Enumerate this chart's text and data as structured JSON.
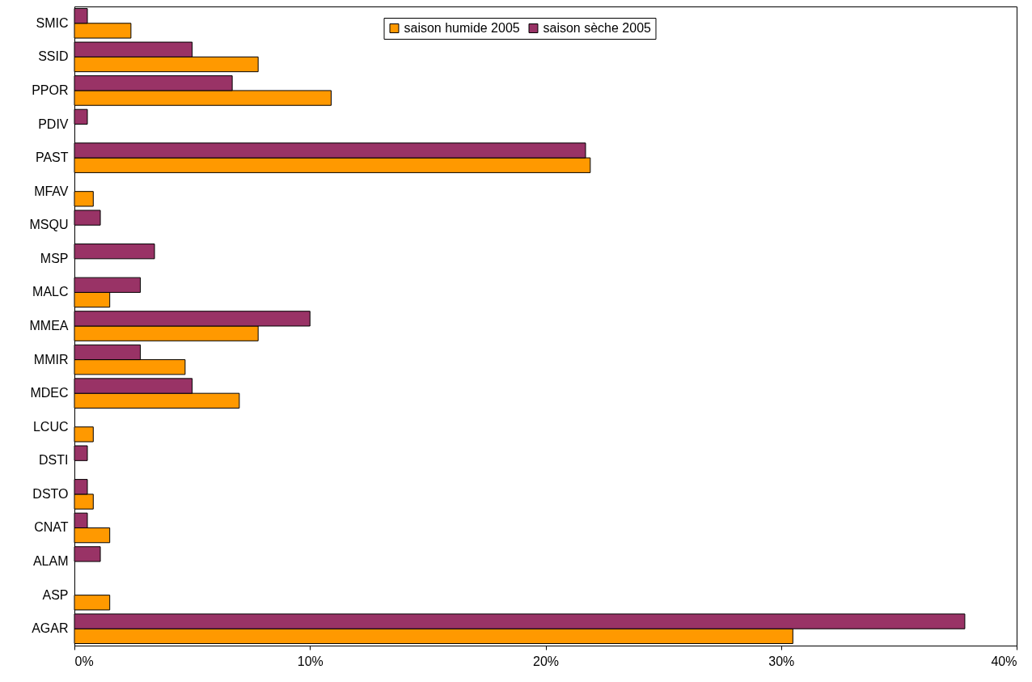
{
  "chart_data": {
    "type": "bar",
    "orientation": "horizontal",
    "categories": [
      "SMIC",
      "SSID",
      "PPOR",
      "PDIV",
      "PAST",
      "MFAV",
      "MSQU",
      "MSP",
      "MALC",
      "MMEA",
      "MMIR",
      "MDEC",
      "LCUC",
      "DSTI",
      "DSTO",
      "CNAT",
      "ALAM",
      "ASP",
      "AGAR"
    ],
    "series": [
      {
        "name": "saison humide 2005",
        "color": "#ff9900",
        "values": [
          2.4,
          7.8,
          10.9,
          null,
          21.9,
          0.8,
          null,
          null,
          1.5,
          7.8,
          4.7,
          7.0,
          0.8,
          null,
          0.8,
          1.5,
          null,
          1.5,
          30.5
        ]
      },
      {
        "name": "saison sèche 2005",
        "color": "#993366",
        "values": [
          0.55,
          5.0,
          6.7,
          0.55,
          21.7,
          null,
          1.1,
          3.4,
          2.8,
          10.0,
          2.8,
          5.0,
          null,
          0.55,
          0.55,
          0.55,
          1.1,
          null,
          37.8
        ]
      }
    ],
    "xlim": [
      0,
      40
    ],
    "xticks": [
      {
        "value": 0,
        "label": "0%"
      },
      {
        "value": 10,
        "label": "10%"
      },
      {
        "value": 20,
        "label": "20%"
      },
      {
        "value": 30,
        "label": "30%"
      },
      {
        "value": 40,
        "label": "40%"
      }
    ],
    "grid": false,
    "legend": "top"
  }
}
